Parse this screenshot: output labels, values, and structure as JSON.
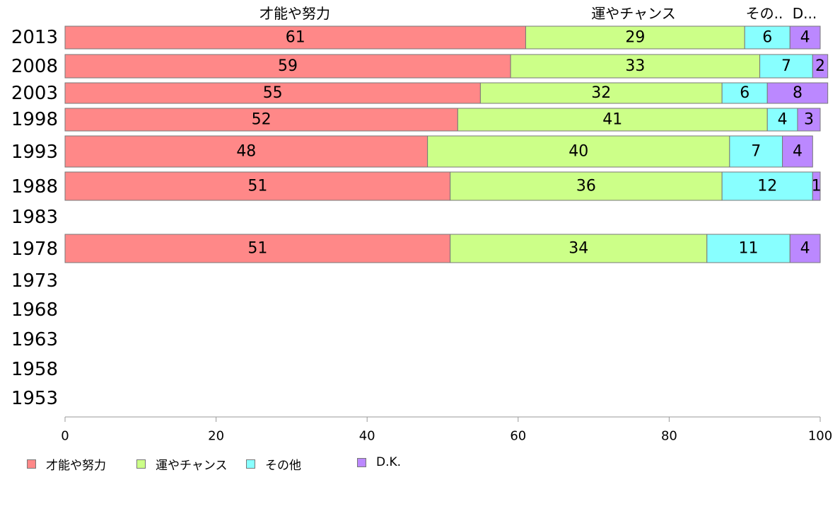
{
  "chart_data": {
    "type": "bar",
    "orientation": "horizontal",
    "stacked": true,
    "categories": [
      "2013",
      "2008",
      "2003",
      "1998",
      "1993",
      "1988",
      "1983",
      "1978",
      "1973",
      "1968",
      "1963",
      "1958",
      "1953"
    ],
    "series": [
      {
        "name": "才能や努力",
        "color": "#ff8888",
        "values": [
          61,
          59,
          55,
          52,
          48,
          51,
          null,
          51,
          null,
          null,
          null,
          null,
          null
        ]
      },
      {
        "name": "運やチャンス",
        "color": "#ccff88",
        "values": [
          29,
          33,
          32,
          41,
          40,
          36,
          null,
          34,
          null,
          null,
          null,
          null,
          null
        ]
      },
      {
        "name": "その他",
        "color": "#88ffff",
        "values": [
          6,
          7,
          6,
          4,
          7,
          12,
          null,
          11,
          null,
          null,
          null,
          null,
          null
        ]
      },
      {
        "name": "D.K.",
        "color": "#bb88ff",
        "values": [
          4,
          2,
          8,
          3,
          4,
          1,
          null,
          4,
          null,
          null,
          null,
          null,
          null
        ]
      }
    ],
    "header_labels": [
      "才能や努力",
      "運やチャンス",
      "その..",
      "D..."
    ],
    "xlim": [
      0,
      100
    ],
    "xticks": [
      0,
      20,
      40,
      60,
      80,
      100
    ],
    "grid": false,
    "legend_position": "bottom-left"
  }
}
